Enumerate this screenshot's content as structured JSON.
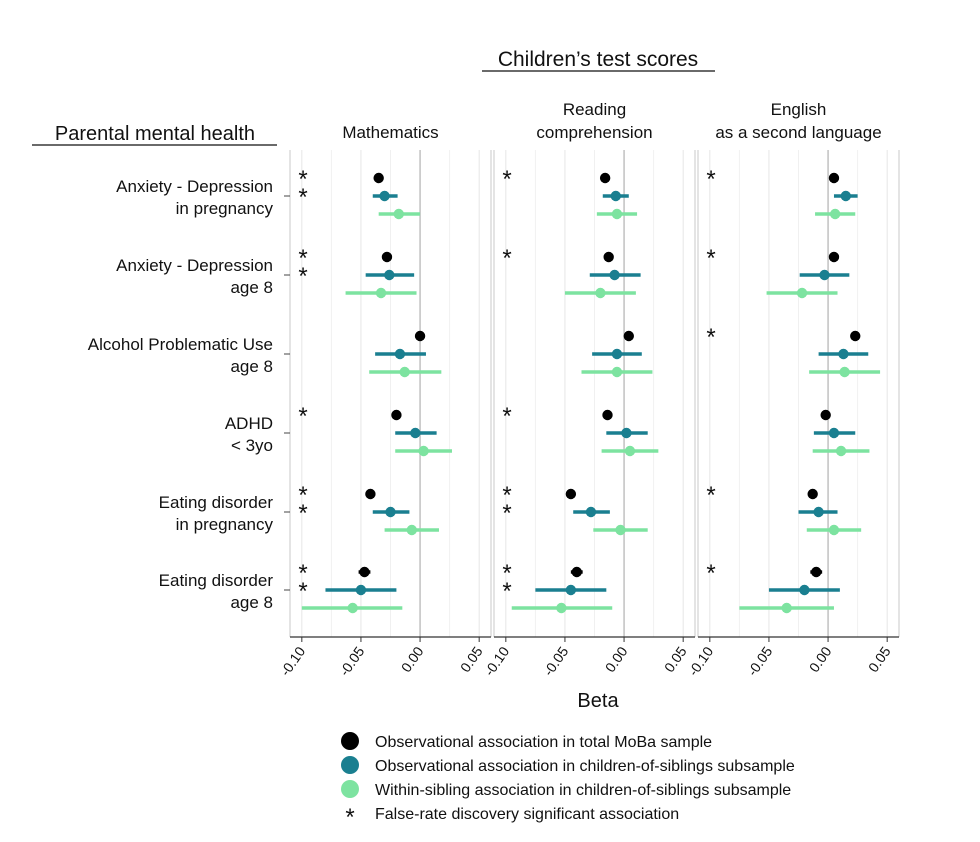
{
  "chart_data": {
    "type": "forest",
    "title": "Children’s test scores",
    "row_header": "Parental mental health",
    "xlabel": "Beta",
    "xlim": [
      -0.11,
      0.06
    ],
    "xticks": [
      -0.1,
      -0.05,
      0.0,
      0.05
    ],
    "xtick_labels": [
      "-0.10",
      "-0.05",
      "0.00",
      "0.05"
    ],
    "panels": [
      {
        "id": "math",
        "title_lines": [
          "Mathematics"
        ]
      },
      {
        "id": "reading",
        "title_lines": [
          "Reading",
          "comprehension"
        ]
      },
      {
        "id": "esl",
        "title_lines": [
          "English",
          "as a second language"
        ]
      }
    ],
    "rows": [
      {
        "label_lines": [
          "Anxiety - Depression",
          "in pregnancy"
        ]
      },
      {
        "label_lines": [
          "Anxiety - Depression",
          "age 8"
        ]
      },
      {
        "label_lines": [
          "Alcohol Problematic Use",
          "age 8"
        ]
      },
      {
        "label_lines": [
          "ADHD",
          "< 3yo"
        ]
      },
      {
        "label_lines": [
          "Eating disorder",
          "in pregnancy"
        ]
      },
      {
        "label_lines": [
          "Eating disorder",
          "age 8"
        ]
      }
    ],
    "series": [
      {
        "name": "Observational association in total MoBa sample",
        "color": "#000000",
        "estimates": [
          [
            [
              -0.035,
              -0.038,
              -0.031
            ],
            [
              -0.016,
              -0.019,
              -0.013
            ],
            [
              0.005,
              0.001,
              0.009
            ]
          ],
          [
            [
              -0.028,
              -0.032,
              -0.024
            ],
            [
              -0.013,
              -0.017,
              -0.009
            ],
            [
              0.005,
              0.001,
              0.009
            ]
          ],
          [
            [
              0.0,
              -0.004,
              0.004
            ],
            [
              0.004,
              0.0,
              0.008
            ],
            [
              0.023,
              0.019,
              0.027
            ]
          ],
          [
            [
              -0.02,
              -0.024,
              -0.016
            ],
            [
              -0.014,
              -0.018,
              -0.01
            ],
            [
              -0.002,
              -0.006,
              0.002
            ]
          ],
          [
            [
              -0.042,
              -0.046,
              -0.038
            ],
            [
              -0.045,
              -0.049,
              -0.041
            ],
            [
              -0.013,
              -0.017,
              -0.009
            ]
          ],
          [
            [
              -0.047,
              -0.052,
              -0.042
            ],
            [
              -0.04,
              -0.045,
              -0.035
            ],
            [
              -0.01,
              -0.015,
              -0.005
            ]
          ]
        ]
      },
      {
        "name": "Observational association in children-of-siblings subsample",
        "color": "#1a7f90",
        "estimates": [
          [
            [
              -0.03,
              -0.04,
              -0.019
            ],
            [
              -0.007,
              -0.018,
              0.004
            ],
            [
              0.015,
              0.005,
              0.025
            ]
          ],
          [
            [
              -0.026,
              -0.046,
              -0.005
            ],
            [
              -0.008,
              -0.029,
              0.014
            ],
            [
              -0.003,
              -0.024,
              0.018
            ]
          ],
          [
            [
              -0.017,
              -0.038,
              0.005
            ],
            [
              -0.006,
              -0.027,
              0.015
            ],
            [
              0.013,
              -0.008,
              0.034
            ]
          ],
          [
            [
              -0.004,
              -0.021,
              0.014
            ],
            [
              0.002,
              -0.015,
              0.02
            ],
            [
              0.005,
              -0.012,
              0.023
            ]
          ],
          [
            [
              -0.025,
              -0.04,
              -0.009
            ],
            [
              -0.028,
              -0.043,
              -0.012
            ],
            [
              -0.008,
              -0.025,
              0.008
            ]
          ],
          [
            [
              -0.05,
              -0.08,
              -0.02
            ],
            [
              -0.045,
              -0.075,
              -0.015
            ],
            [
              -0.02,
              -0.05,
              0.01
            ]
          ]
        ]
      },
      {
        "name": "Within-sibling association in children-of-siblings subsample",
        "color": "#7de3a0",
        "estimates": [
          [
            [
              -0.018,
              -0.035,
              0.0
            ],
            [
              -0.006,
              -0.023,
              0.011
            ],
            [
              0.006,
              -0.011,
              0.023
            ]
          ],
          [
            [
              -0.033,
              -0.063,
              -0.003
            ],
            [
              -0.02,
              -0.05,
              0.01
            ],
            [
              -0.022,
              -0.052,
              0.008
            ]
          ],
          [
            [
              -0.013,
              -0.043,
              0.018
            ],
            [
              -0.006,
              -0.036,
              0.024
            ],
            [
              0.014,
              -0.016,
              0.044
            ]
          ],
          [
            [
              0.003,
              -0.021,
              0.027
            ],
            [
              0.005,
              -0.019,
              0.029
            ],
            [
              0.011,
              -0.013,
              0.035
            ]
          ],
          [
            [
              -0.007,
              -0.03,
              0.016
            ],
            [
              -0.003,
              -0.026,
              0.02
            ],
            [
              0.005,
              -0.018,
              0.028
            ]
          ],
          [
            [
              -0.057,
              -0.1,
              -0.015
            ],
            [
              -0.053,
              -0.095,
              -0.01
            ],
            [
              -0.035,
              -0.075,
              0.005
            ]
          ]
        ]
      }
    ],
    "significance": [
      [
        [
          true,
          true,
          false
        ],
        [
          true,
          false,
          false
        ],
        [
          true,
          false,
          false
        ]
      ],
      [
        [
          true,
          true,
          false
        ],
        [
          true,
          false,
          false
        ],
        [
          true,
          false,
          false
        ]
      ],
      [
        [
          false,
          false,
          false
        ],
        [
          false,
          false,
          false
        ],
        [
          true,
          false,
          false
        ]
      ],
      [
        [
          true,
          false,
          false
        ],
        [
          true,
          false,
          false
        ],
        [
          false,
          false,
          false
        ]
      ],
      [
        [
          true,
          true,
          false
        ],
        [
          true,
          true,
          false
        ],
        [
          true,
          false,
          false
        ]
      ],
      [
        [
          true,
          true,
          false
        ],
        [
          true,
          true,
          false
        ],
        [
          true,
          false,
          false
        ]
      ]
    ],
    "legend": [
      {
        "label": "Observational association in total MoBa sample",
        "marker": "dot",
        "color": "#000000"
      },
      {
        "label": "Observational association in children-of-siblings subsample",
        "marker": "dot",
        "color": "#1a7f90"
      },
      {
        "label": "Within-sibling association in children-of-siblings subsample",
        "marker": "dot",
        "color": "#7de3a0"
      },
      {
        "label": "False-rate discovery significant association",
        "marker": "star",
        "color": "#e41a1c",
        "symbol": "*"
      }
    ]
  }
}
